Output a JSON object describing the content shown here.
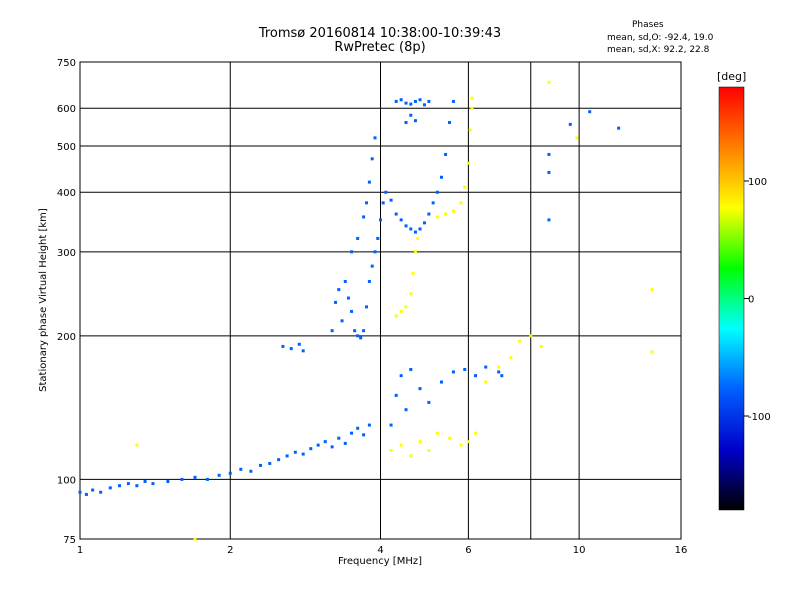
{
  "header": {
    "title_line1": "Tromsø 20160814 10:38:00-10:39:43",
    "title_line2": "RwPretec (8p)",
    "stats_header": "Phases",
    "stats_o": "mean, sd,O: -92.4, 19.0",
    "stats_x": "mean, sd,X:  92.2, 22.8"
  },
  "colorbar": {
    "unit_label": "[deg]",
    "range": [
      -180,
      180
    ],
    "ticks": [
      "100",
      "0",
      "-100"
    ],
    "tick_values": [
      100,
      0,
      -100
    ],
    "colors": [
      "#ff0000",
      "#ff8000",
      "#ffff00",
      "#00ff00",
      "#00ffff",
      "#0060ff",
      "#0000cc",
      "#000000"
    ]
  },
  "chart_data": {
    "type": "scatter",
    "title": "Tromsø 20160814 10:38:00-10:39:43",
    "subtitle": "RwPretec (8p)",
    "xlabel": "Frequency [MHz]",
    "ylabel": "Stationary phase Virtual Height [km]",
    "xscale": "log",
    "yscale": "log",
    "xlim": [
      1,
      16
    ],
    "ylim": [
      75,
      750
    ],
    "xticks": [
      1,
      2,
      4,
      6,
      10,
      16
    ],
    "xtick_labels": [
      "1",
      "2",
      "4",
      "6",
      "10",
      "16"
    ],
    "xticks_minor": [
      8
    ],
    "yticks": [
      75,
      100,
      200,
      300,
      400,
      500,
      600,
      750
    ],
    "ytick_labels": [
      "75",
      "100",
      "200",
      "300",
      "400",
      "500",
      "600",
      "750"
    ],
    "grid": true,
    "colorscale": "phase_deg",
    "series": [
      {
        "name": "O",
        "color_value": -92,
        "points": [
          [
            1.0,
            94
          ],
          [
            1.03,
            93
          ],
          [
            1.06,
            95
          ],
          [
            1.1,
            94
          ],
          [
            1.15,
            96
          ],
          [
            1.2,
            97
          ],
          [
            1.25,
            98
          ],
          [
            1.3,
            97
          ],
          [
            1.35,
            99
          ],
          [
            1.4,
            98
          ],
          [
            1.5,
            99
          ],
          [
            1.6,
            100
          ],
          [
            1.7,
            101
          ],
          [
            1.8,
            100
          ],
          [
            1.9,
            102
          ],
          [
            2.0,
            103
          ],
          [
            2.1,
            105
          ],
          [
            2.2,
            104
          ],
          [
            2.3,
            107
          ],
          [
            2.4,
            108
          ],
          [
            2.5,
            110
          ],
          [
            2.6,
            112
          ],
          [
            2.7,
            114
          ],
          [
            2.8,
            113
          ],
          [
            2.9,
            116
          ],
          [
            3.0,
            118
          ],
          [
            3.1,
            120
          ],
          [
            3.2,
            117
          ],
          [
            3.3,
            122
          ],
          [
            3.4,
            119
          ],
          [
            3.5,
            125
          ],
          [
            3.6,
            128
          ],
          [
            3.7,
            124
          ],
          [
            3.8,
            130
          ],
          [
            2.55,
            190
          ],
          [
            2.65,
            188
          ],
          [
            2.75,
            192
          ],
          [
            2.8,
            186
          ],
          [
            3.2,
            205
          ],
          [
            3.25,
            235
          ],
          [
            3.3,
            250
          ],
          [
            3.35,
            215
          ],
          [
            3.4,
            260
          ],
          [
            3.45,
            240
          ],
          [
            3.5,
            225
          ],
          [
            3.55,
            205
          ],
          [
            3.6,
            200
          ],
          [
            3.65,
            198
          ],
          [
            3.7,
            205
          ],
          [
            3.75,
            230
          ],
          [
            3.8,
            260
          ],
          [
            3.85,
            280
          ],
          [
            3.9,
            300
          ],
          [
            3.95,
            320
          ],
          [
            4.0,
            350
          ],
          [
            4.05,
            380
          ],
          [
            4.1,
            400
          ],
          [
            4.2,
            385
          ],
          [
            4.3,
            360
          ],
          [
            4.4,
            350
          ],
          [
            4.5,
            340
          ],
          [
            4.6,
            335
          ],
          [
            4.7,
            330
          ],
          [
            4.8,
            335
          ],
          [
            4.9,
            345
          ],
          [
            5.0,
            360
          ],
          [
            5.1,
            380
          ],
          [
            5.2,
            400
          ],
          [
            5.3,
            430
          ],
          [
            5.4,
            480
          ],
          [
            5.5,
            560
          ],
          [
            5.6,
            620
          ],
          [
            3.5,
            300
          ],
          [
            3.6,
            320
          ],
          [
            3.7,
            355
          ],
          [
            3.75,
            380
          ],
          [
            3.8,
            420
          ],
          [
            3.85,
            470
          ],
          [
            3.9,
            520
          ],
          [
            4.3,
            620
          ],
          [
            4.4,
            625
          ],
          [
            4.5,
            615
          ],
          [
            4.6,
            612
          ],
          [
            4.7,
            620
          ],
          [
            4.8,
            625
          ],
          [
            4.9,
            610
          ],
          [
            5.0,
            620
          ],
          [
            4.5,
            560
          ],
          [
            4.6,
            580
          ],
          [
            4.7,
            565
          ],
          [
            4.2,
            130
          ],
          [
            4.3,
            150
          ],
          [
            4.4,
            165
          ],
          [
            4.5,
            140
          ],
          [
            4.6,
            170
          ],
          [
            4.8,
            155
          ],
          [
            5.0,
            145
          ],
          [
            5.3,
            160
          ],
          [
            5.6,
            168
          ],
          [
            5.9,
            170
          ],
          [
            6.2,
            165
          ],
          [
            6.5,
            172
          ],
          [
            6.9,
            168
          ],
          [
            7.0,
            165
          ],
          [
            8.7,
            350
          ],
          [
            8.7,
            440
          ],
          [
            8.7,
            480
          ],
          [
            9.6,
            555
          ],
          [
            10.5,
            590
          ],
          [
            12.0,
            545
          ]
        ]
      },
      {
        "name": "X",
        "color_value": 92,
        "points": [
          [
            4.3,
            220
          ],
          [
            4.4,
            225
          ],
          [
            4.5,
            230
          ],
          [
            4.6,
            245
          ],
          [
            4.65,
            270
          ],
          [
            4.7,
            300
          ],
          [
            4.75,
            320
          ],
          [
            5.2,
            355
          ],
          [
            5.4,
            360
          ],
          [
            5.6,
            365
          ],
          [
            5.8,
            380
          ],
          [
            5.9,
            410
          ],
          [
            6.0,
            460
          ],
          [
            6.05,
            540
          ],
          [
            6.1,
            600
          ],
          [
            6.1,
            630
          ],
          [
            4.2,
            115
          ],
          [
            4.4,
            118
          ],
          [
            4.6,
            112
          ],
          [
            4.8,
            120
          ],
          [
            5.0,
            115
          ],
          [
            5.2,
            125
          ],
          [
            5.5,
            122
          ],
          [
            5.8,
            118
          ],
          [
            6.0,
            120
          ],
          [
            6.2,
            125
          ],
          [
            6.5,
            160
          ],
          [
            6.9,
            172
          ],
          [
            7.3,
            180
          ],
          [
            7.6,
            195
          ],
          [
            8.0,
            200
          ],
          [
            8.4,
            190
          ],
          [
            8.7,
            680
          ],
          [
            9.9,
            520
          ],
          [
            1.3,
            118
          ],
          [
            1.7,
            75
          ],
          [
            14.0,
            250
          ],
          [
            14.0,
            185
          ]
        ]
      }
    ]
  }
}
